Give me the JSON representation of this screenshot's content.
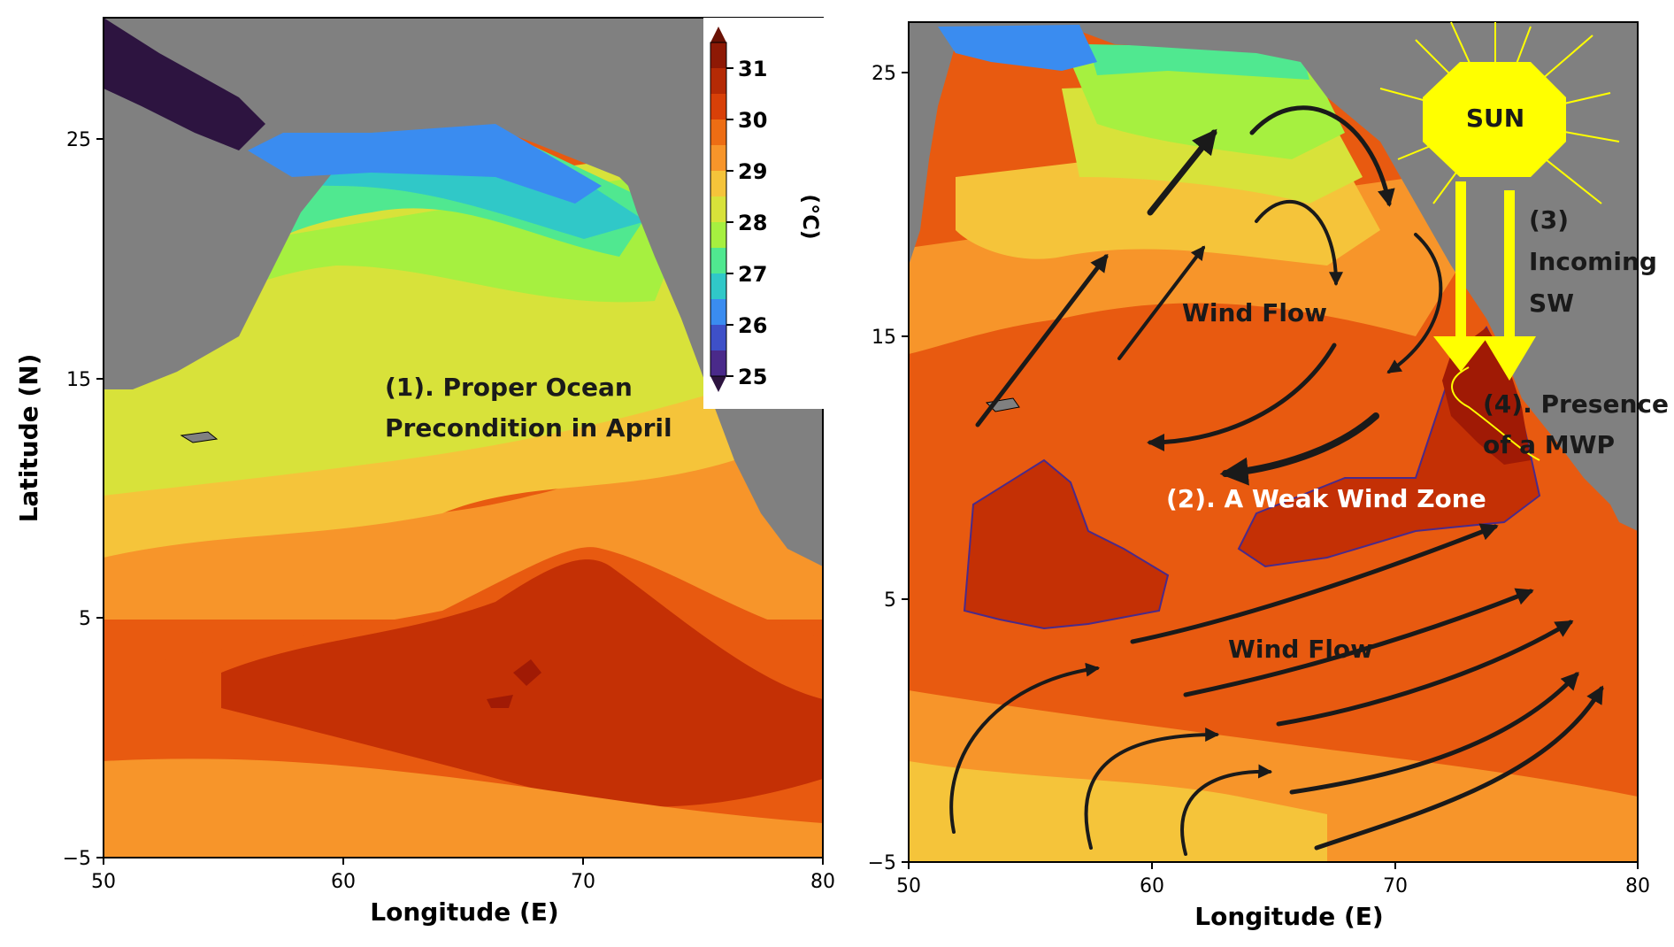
{
  "colors": {
    "land": "#808080",
    "sst_31": "#a01a05",
    "sst_30": "#c43005",
    "sst_29": "#e85a10",
    "sst_28_5": "#f7952a",
    "sst_28": "#f5c43a",
    "sst_27_5": "#d8e23a",
    "sst_27": "#a6f040",
    "sst_26_5": "#50e890",
    "sst_26": "#30c8c8",
    "sst_25_5": "#3a8cf0",
    "sst_25": "#2d1440",
    "annotation_yellow": "#ffff00",
    "annotation_white": "#ffffff",
    "annotation_dark": "#1a1a1a"
  },
  "left_panel": {
    "annotation": [
      "(1). Proper Ocean",
      "Precondition in April"
    ],
    "xlabel": "Longitude (E)",
    "ylabel": "Latitude (N)",
    "xticks": [
      "50",
      "60",
      "70",
      "80"
    ],
    "yticks": [
      "25",
      "15",
      "5",
      "−5"
    ],
    "colorbar": {
      "unit": "(°C)",
      "levels": [
        "31",
        "30",
        "29",
        "28",
        "27",
        "26",
        "25"
      ]
    }
  },
  "right_panel": {
    "xlabel": "Longitude (E)",
    "xticks": [
      "50",
      "60",
      "70",
      "80"
    ],
    "yticks": [
      "25",
      "15",
      "5",
      "−5"
    ],
    "sun_label": "SUN",
    "labels": {
      "wind_flow_upper": "Wind Flow",
      "weak_wind_zone": "(2). A Weak Wind Zone",
      "wind_flow_lower": "Wind Flow",
      "incoming_sw": [
        "(3)",
        "Incoming",
        "SW"
      ],
      "mwp": [
        "(4). Presence",
        "of a MWP"
      ]
    }
  }
}
